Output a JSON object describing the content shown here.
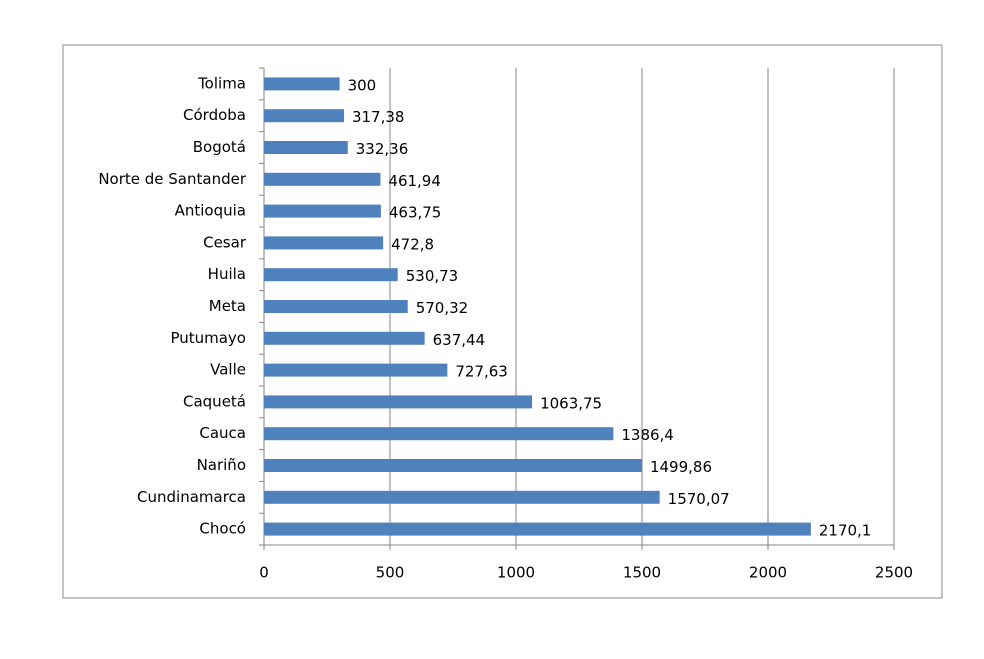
{
  "chart_data": {
    "type": "hbar",
    "categories": [
      "Tolima",
      "Córdoba",
      "Bogotá",
      "Norte de Santander",
      "Antioquia",
      "Cesar",
      "Huila",
      "Meta",
      "Putumayo",
      "Valle",
      "Caquetá",
      "Cauca",
      "Nariño",
      "Cundinamarca",
      "Chocó"
    ],
    "values": [
      300,
      317.38,
      332.36,
      461.94,
      463.75,
      472.8,
      530.73,
      570.32,
      637.44,
      727.63,
      1063.75,
      1386.4,
      1499.86,
      1570.07,
      2170.1
    ],
    "value_labels": [
      "300",
      "317,38",
      "332,36",
      "461,94",
      "463,75",
      "472,8",
      "530,73",
      "570,32",
      "637,44",
      "727,63",
      "1063,75",
      "1386,4",
      "1499,86",
      "1570,07",
      "2170,1"
    ],
    "color": "#4f81bd",
    "xlim": [
      0,
      2500
    ],
    "xticks": [
      0,
      500,
      1000,
      1500,
      2000,
      2500
    ],
    "grid": true
  }
}
